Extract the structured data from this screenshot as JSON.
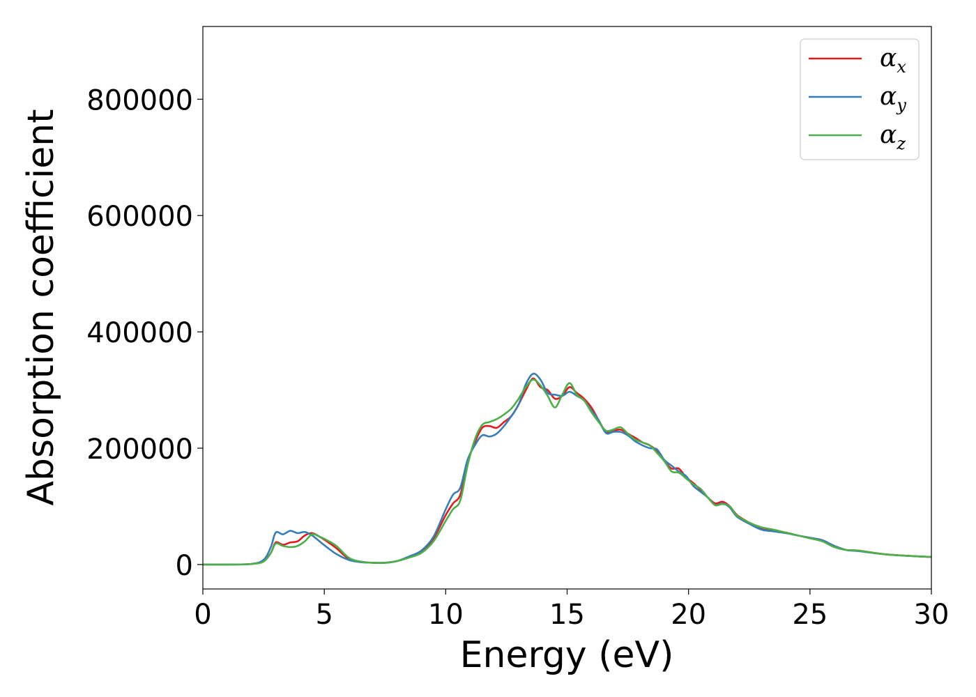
{
  "chart_data": {
    "type": "line",
    "xlabel": "Energy (eV)",
    "ylabel": "Absorption coefficient",
    "xlim": [
      0,
      30
    ],
    "ylim": [
      -42000,
      925000
    ],
    "xticks": [
      0,
      5,
      10,
      15,
      20,
      25,
      30
    ],
    "yticks": [
      0,
      200000,
      400000,
      600000,
      800000
    ],
    "grid": false,
    "legend_position": "top-right",
    "series": [
      {
        "name": "α_x",
        "symbol": "α",
        "subscript": "x",
        "color": "#e41a1c",
        "x": [
          0,
          1,
          2,
          2.5,
          2.8,
          3.0,
          3.3,
          3.6,
          3.9,
          4.2,
          4.5,
          4.8,
          5.1,
          5.5,
          6.0,
          6.5,
          7.0,
          7.5,
          8.0,
          8.5,
          9.0,
          9.5,
          10.0,
          10.3,
          10.6,
          10.9,
          11.2,
          11.5,
          11.8,
          12.1,
          12.4,
          12.7,
          13.0,
          13.3,
          13.6,
          13.9,
          14.2,
          14.5,
          14.8,
          15.1,
          15.4,
          15.7,
          16.0,
          16.3,
          16.6,
          16.9,
          17.2,
          17.5,
          17.8,
          18.1,
          18.4,
          18.7,
          19.0,
          19.3,
          19.6,
          19.9,
          20.2,
          20.5,
          20.8,
          21.1,
          21.4,
          21.7,
          22.0,
          22.5,
          23.0,
          23.5,
          24.0,
          24.5,
          25.0,
          25.5,
          26.0,
          26.5,
          27.0,
          28.0,
          29.0,
          30.0
        ],
        "y": [
          0,
          0,
          1000,
          6000,
          20000,
          38000,
          34000,
          38000,
          40000,
          50000,
          54000,
          48000,
          40000,
          28000,
          10000,
          5000,
          3000,
          3000,
          6000,
          13000,
          22000,
          45000,
          85000,
          105000,
          120000,
          175000,
          210000,
          235000,
          238000,
          235000,
          245000,
          255000,
          275000,
          300000,
          320000,
          305000,
          300000,
          285000,
          290000,
          305000,
          295000,
          285000,
          270000,
          248000,
          228000,
          230000,
          232000,
          225000,
          218000,
          210000,
          205000,
          195000,
          178000,
          165000,
          165000,
          150000,
          140000,
          128000,
          115000,
          105000,
          108000,
          100000,
          85000,
          72000,
          62000,
          58000,
          55000,
          50000,
          46000,
          42000,
          32000,
          25000,
          24000,
          18000,
          15000,
          13000
        ]
      },
      {
        "name": "α_y",
        "symbol": "α",
        "subscript": "y",
        "color": "#377eb8",
        "x": [
          0,
          1,
          2,
          2.5,
          2.8,
          3.0,
          3.3,
          3.6,
          3.9,
          4.2,
          4.5,
          4.8,
          5.1,
          5.5,
          6.0,
          6.5,
          7.0,
          7.5,
          8.0,
          8.5,
          9.0,
          9.5,
          10.0,
          10.3,
          10.6,
          10.9,
          11.2,
          11.5,
          11.8,
          12.1,
          12.4,
          12.7,
          13.0,
          13.3,
          13.6,
          13.9,
          14.2,
          14.5,
          14.8,
          15.1,
          15.4,
          15.7,
          16.0,
          16.3,
          16.6,
          16.9,
          17.2,
          17.5,
          17.8,
          18.1,
          18.4,
          18.7,
          19.0,
          19.3,
          19.6,
          19.9,
          20.2,
          20.5,
          20.8,
          21.1,
          21.4,
          21.7,
          22.0,
          22.5,
          23.0,
          23.5,
          24.0,
          24.5,
          25.0,
          25.5,
          26.0,
          26.5,
          27.0,
          28.0,
          29.0,
          30.0
        ],
        "y": [
          0,
          0,
          1000,
          8000,
          30000,
          55000,
          52000,
          58000,
          54000,
          56000,
          50000,
          40000,
          30000,
          18000,
          8000,
          4000,
          3000,
          3000,
          6000,
          14000,
          24000,
          48000,
          95000,
          120000,
          132000,
          180000,
          205000,
          222000,
          220000,
          225000,
          238000,
          255000,
          275000,
          310000,
          328000,
          318000,
          295000,
          292000,
          290000,
          297000,
          290000,
          282000,
          265000,
          248000,
          226000,
          228000,
          228000,
          222000,
          212000,
          205000,
          200000,
          198000,
          180000,
          170000,
          160000,
          152000,
          135000,
          125000,
          115000,
          102000,
          105000,
          98000,
          82000,
          70000,
          60000,
          57000,
          54000,
          50000,
          46000,
          42000,
          32000,
          25000,
          23000,
          18000,
          15000,
          13000
        ]
      },
      {
        "name": "α_z",
        "symbol": "α",
        "subscript": "z",
        "color": "#4daf4a",
        "x": [
          0,
          1,
          2,
          2.5,
          2.8,
          3.0,
          3.3,
          3.6,
          3.9,
          4.2,
          4.5,
          4.8,
          5.1,
          5.5,
          6.0,
          6.5,
          7.0,
          7.5,
          8.0,
          8.5,
          9.0,
          9.5,
          10.0,
          10.3,
          10.6,
          10.9,
          11.2,
          11.5,
          11.8,
          12.1,
          12.4,
          12.7,
          13.0,
          13.3,
          13.6,
          13.9,
          14.2,
          14.5,
          14.8,
          15.1,
          15.4,
          15.7,
          16.0,
          16.3,
          16.6,
          16.9,
          17.2,
          17.5,
          17.8,
          18.1,
          18.4,
          18.7,
          19.0,
          19.3,
          19.6,
          19.9,
          20.2,
          20.5,
          20.8,
          21.1,
          21.4,
          21.7,
          22.0,
          22.5,
          23.0,
          23.5,
          24.0,
          24.5,
          25.0,
          25.5,
          26.0,
          26.5,
          27.0,
          28.0,
          29.0,
          30.0
        ],
        "y": [
          0,
          0,
          1000,
          5000,
          20000,
          36000,
          32000,
          30000,
          32000,
          40000,
          52000,
          48000,
          42000,
          32000,
          12000,
          5000,
          3000,
          3000,
          6000,
          12000,
          20000,
          40000,
          75000,
          95000,
          110000,
          170000,
          215000,
          240000,
          245000,
          250000,
          258000,
          268000,
          285000,
          305000,
          318000,
          308000,
          290000,
          270000,
          292000,
          312000,
          292000,
          282000,
          262000,
          245000,
          230000,
          232000,
          236000,
          225000,
          215000,
          210000,
          205000,
          192000,
          178000,
          160000,
          158000,
          148000,
          138000,
          130000,
          115000,
          102000,
          104000,
          100000,
          84000,
          72000,
          64000,
          60000,
          55000,
          50000,
          45000,
          40000,
          30000,
          25000,
          24000,
          18000,
          15000,
          13000
        ]
      }
    ]
  }
}
